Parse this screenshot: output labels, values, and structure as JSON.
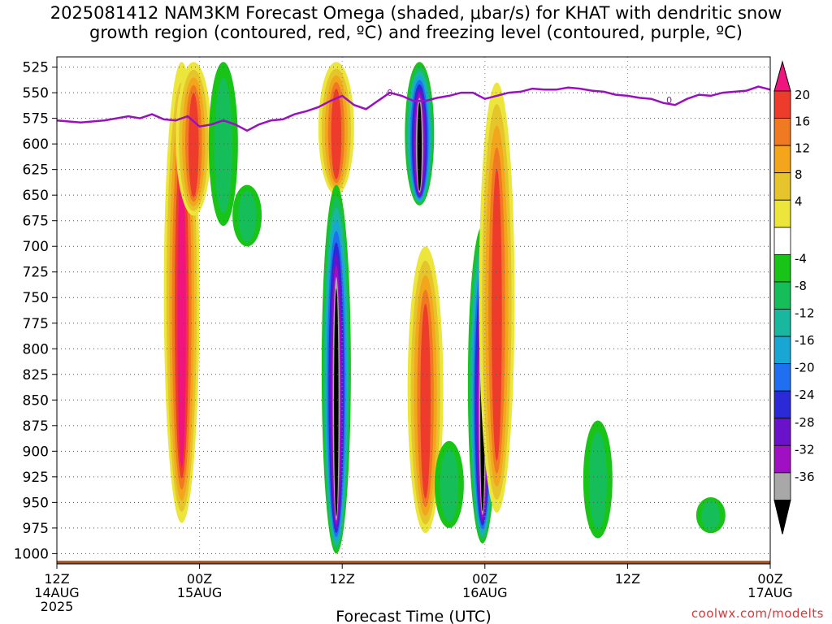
{
  "title_line1": "2025081412 NAM3KM Forecast Omega (shaded, μbar/s) for KHAT with dendritic snow",
  "title_line2": "growth region (contoured, red, ºC) and freezing level (contoured, purple, ºC)",
  "credit": "coolwx.com/modelts",
  "chart_data": {
    "type": "heatmap",
    "title": "2025081412 NAM3KM Forecast Omega (shaded, μbar/s) for KHAT with dendritic snow growth region (contoured, red, ºC) and freezing level (contoured, purple, ºC)",
    "xlabel": "Forecast Time (UTC)",
    "ylabel": "",
    "y_scale": "pressure (hPa), inverted",
    "ylim": [
      1000,
      515
    ],
    "y_ticks": [
      525,
      550,
      575,
      600,
      625,
      650,
      675,
      700,
      725,
      750,
      775,
      800,
      825,
      850,
      875,
      900,
      925,
      950,
      975,
      1000
    ],
    "x_range_hours": [
      0,
      60
    ],
    "x_ticks": [
      {
        "hour": 0,
        "label1": "12Z",
        "label2": "14AUG",
        "label3": "2025"
      },
      {
        "hour": 12,
        "label1": "00Z",
        "label2": "15AUG",
        "label3": ""
      },
      {
        "hour": 24,
        "label1": "12Z",
        "label2": "",
        "label3": ""
      },
      {
        "hour": 36,
        "label1": "00Z",
        "label2": "16AUG",
        "label3": ""
      },
      {
        "hour": 48,
        "label1": "12Z",
        "label2": "",
        "label3": ""
      },
      {
        "hour": 60,
        "label1": "00Z",
        "label2": "17AUG",
        "label3": ""
      }
    ],
    "grid": true,
    "colorbar": {
      "position": "right",
      "labels": [
        "20",
        "16",
        "12",
        "8",
        "4",
        "-4",
        "-8",
        "-12",
        "-16",
        "-20",
        "-24",
        "-28",
        "-32",
        "-36"
      ],
      "colors": [
        "#f0147f",
        "#ee3c2c",
        "#f07a22",
        "#f3a51c",
        "#e6c42c",
        "#ece63c",
        "#ffffff",
        "#19c419",
        "#16be5a",
        "#18b79e",
        "#19a6d2",
        "#1f6ff0",
        "#2a2ad7",
        "#6a12c9",
        "#a010c3",
        "#a8a8a8",
        "#000000"
      ]
    },
    "freezing_level": {
      "color": "#9a10bf",
      "label": "0",
      "points": [
        [
          0,
          577
        ],
        [
          2,
          579
        ],
        [
          4,
          577
        ],
        [
          6,
          573
        ],
        [
          7,
          575
        ],
        [
          8,
          571
        ],
        [
          9,
          576
        ],
        [
          10,
          577
        ],
        [
          11,
          573
        ],
        [
          12,
          583
        ],
        [
          13,
          581
        ],
        [
          14,
          577
        ],
        [
          15,
          581
        ],
        [
          16,
          587
        ],
        [
          17,
          581
        ],
        [
          18,
          577
        ],
        [
          19,
          576
        ],
        [
          20,
          571
        ],
        [
          21,
          568
        ],
        [
          22,
          564
        ],
        [
          23,
          558
        ],
        [
          24,
          553
        ],
        [
          25,
          562
        ],
        [
          26,
          566
        ],
        [
          27,
          558
        ],
        [
          28,
          550
        ],
        [
          29,
          553
        ],
        [
          30,
          558
        ],
        [
          31,
          558
        ],
        [
          32,
          555
        ],
        [
          33,
          553
        ],
        [
          34,
          550
        ],
        [
          35,
          550
        ],
        [
          36,
          556
        ],
        [
          37,
          553
        ],
        [
          38,
          550
        ],
        [
          39,
          549
        ],
        [
          40,
          546
        ],
        [
          41,
          547
        ],
        [
          42,
          547
        ],
        [
          43,
          545
        ],
        [
          44,
          546
        ],
        [
          45,
          548
        ],
        [
          46,
          549
        ],
        [
          47,
          552
        ],
        [
          48,
          553
        ],
        [
          49,
          555
        ],
        [
          50,
          556
        ],
        [
          51,
          560
        ],
        [
          52,
          562
        ],
        [
          53,
          556
        ],
        [
          54,
          552
        ],
        [
          55,
          553
        ],
        [
          56,
          550
        ],
        [
          57,
          549
        ],
        [
          58,
          548
        ],
        [
          59,
          544
        ],
        [
          60,
          547
        ]
      ]
    },
    "omega_features": [
      {
        "hour": 10.5,
        "p_top": 520,
        "p_bottom": 970,
        "peak": 22,
        "note": "positive column"
      },
      {
        "hour": 11.5,
        "p_top": 520,
        "p_bottom": 670,
        "peak": 20,
        "note": "positive column"
      },
      {
        "hour": 14.0,
        "p_top": 520,
        "p_bottom": 680,
        "peak": -8,
        "note": "negative column"
      },
      {
        "hour": 16.0,
        "p_top": 640,
        "p_bottom": 700,
        "peak": -6,
        "note": "negative blob"
      },
      {
        "hour": 23.5,
        "p_top": 520,
        "p_bottom": 650,
        "peak": 20,
        "note": "positive column"
      },
      {
        "hour": 23.5,
        "p_top": 640,
        "p_bottom": 1000,
        "peak": -40,
        "note": "strong ascent column"
      },
      {
        "hour": 30.5,
        "p_top": 520,
        "p_bottom": 660,
        "peak": -40,
        "note": "strong ascent column"
      },
      {
        "hour": 31.0,
        "p_top": 700,
        "p_bottom": 980,
        "peak": 20,
        "note": "positive column"
      },
      {
        "hour": 33.0,
        "p_top": 890,
        "p_bottom": 975,
        "peak": -6,
        "note": "negative blob"
      },
      {
        "hour": 35.8,
        "p_top": 680,
        "p_bottom": 990,
        "peak": -40,
        "note": "strong ascent column"
      },
      {
        "hour": 37.0,
        "p_top": 540,
        "p_bottom": 960,
        "peak": 18,
        "note": "positive column"
      },
      {
        "hour": 45.5,
        "p_top": 870,
        "p_bottom": 985,
        "peak": -6,
        "note": "negative blob"
      },
      {
        "hour": 55.0,
        "p_top": 945,
        "p_bottom": 980,
        "peak": -6,
        "note": "negative blob"
      }
    ]
  }
}
